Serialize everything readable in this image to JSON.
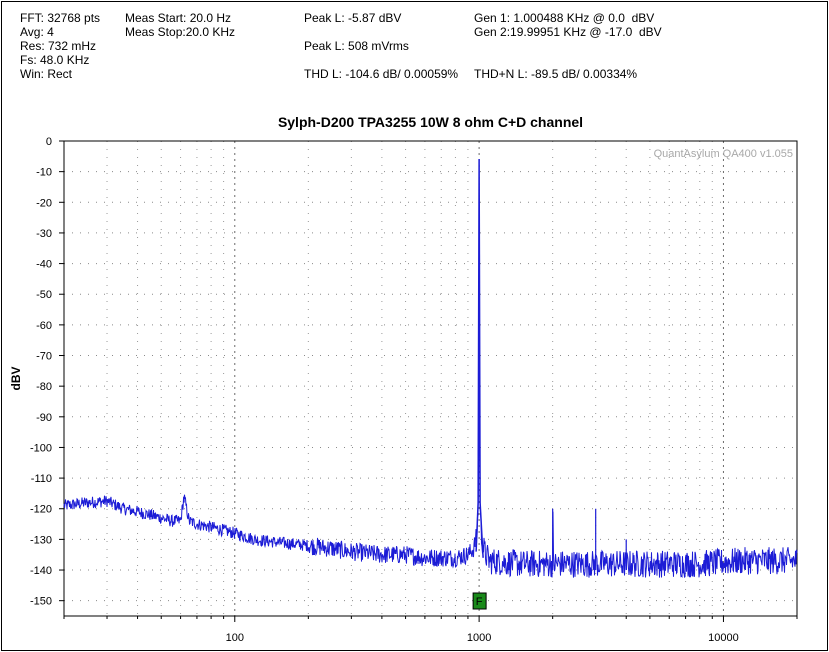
{
  "info": {
    "fft": "FFT: 32768 pts",
    "avg": "Avg: 4",
    "res": "Res: 732 mHz",
    "fs": "Fs: 48.0 KHz",
    "win": "Win: Rect",
    "meas_start": "Meas Start: 20.0 Hz",
    "meas_stop": "Meas Stop:20.0 KHz",
    "peak_l_dbv": "Peak L: -5.87 dBV",
    "peak_l_vrms": "Peak L: 508 mVrms",
    "thd_l": "THD L: -104.6 dB/ 0.00059%",
    "thdn_l": "THD+N L: -89.5 dB/ 0.00334%",
    "gen1": "Gen 1: 1.000488 KHz @ 0.0  dBV",
    "gen2": "Gen 2:19.99951 KHz @ -17.0  dBV"
  },
  "chart_data": {
    "type": "line",
    "title": "Sylph-D200 TPA3255 10W 8 ohm C+D channel",
    "watermark": "QuantAsylum QA400 v1.055",
    "ylabel": "dBV",
    "xlabel": "",
    "x_scale": "log",
    "xlim": [
      20,
      20000
    ],
    "ylim": [
      -155,
      0
    ],
    "y_ticks": [
      0,
      -10,
      -20,
      -30,
      -40,
      -50,
      -60,
      -70,
      -80,
      -90,
      -100,
      -110,
      -120,
      -130,
      -140,
      -150
    ],
    "x_ticks": [
      100,
      1000,
      10000
    ],
    "x_tick_labels": [
      "100",
      "1000",
      "10000"
    ],
    "grid": true,
    "line_color": "#1c1cd6",
    "marker": {
      "label": "F",
      "x": 1000,
      "color": "#1a8a1a"
    },
    "series": [
      {
        "points": [
          [
            20,
            -119
          ],
          [
            25,
            -118
          ],
          [
            30,
            -117.5
          ],
          [
            35,
            -120
          ],
          [
            40,
            -121
          ],
          [
            45,
            -122
          ],
          [
            50,
            -123
          ],
          [
            55,
            -124
          ],
          [
            60,
            -124
          ],
          [
            62,
            -116
          ],
          [
            65,
            -124
          ],
          [
            70,
            -125
          ],
          [
            80,
            -126
          ],
          [
            90,
            -127
          ],
          [
            100,
            -128
          ],
          [
            110,
            -129
          ],
          [
            120,
            -130
          ],
          [
            150,
            -131
          ],
          [
            200,
            -132
          ],
          [
            250,
            -133
          ],
          [
            300,
            -134
          ],
          [
            400,
            -135
          ],
          [
            500,
            -135
          ],
          [
            600,
            -136
          ],
          [
            700,
            -136
          ],
          [
            800,
            -136
          ],
          [
            900,
            -135
          ],
          [
            950,
            -133
          ],
          [
            980,
            -128
          ],
          [
            990,
            -120
          ],
          [
            995,
            -110
          ],
          [
            1000,
            -5.87
          ],
          [
            1005,
            -110
          ],
          [
            1010,
            -120
          ],
          [
            1020,
            -128
          ],
          [
            1050,
            -134
          ],
          [
            1100,
            -137
          ],
          [
            1500,
            -138
          ],
          [
            2000,
            -138
          ],
          [
            2005,
            -120
          ],
          [
            2010,
            -138
          ],
          [
            3000,
            -138
          ],
          [
            3005,
            -120
          ],
          [
            3010,
            -138
          ],
          [
            5000,
            -138
          ],
          [
            8000,
            -138
          ],
          [
            12000,
            -137
          ],
          [
            20000,
            -137
          ]
        ]
      }
    ],
    "harmonic_spikes": [
      [
        62,
        -116
      ],
      [
        2000,
        -120
      ],
      [
        3000,
        -120
      ],
      [
        4000,
        -130
      ]
    ]
  }
}
